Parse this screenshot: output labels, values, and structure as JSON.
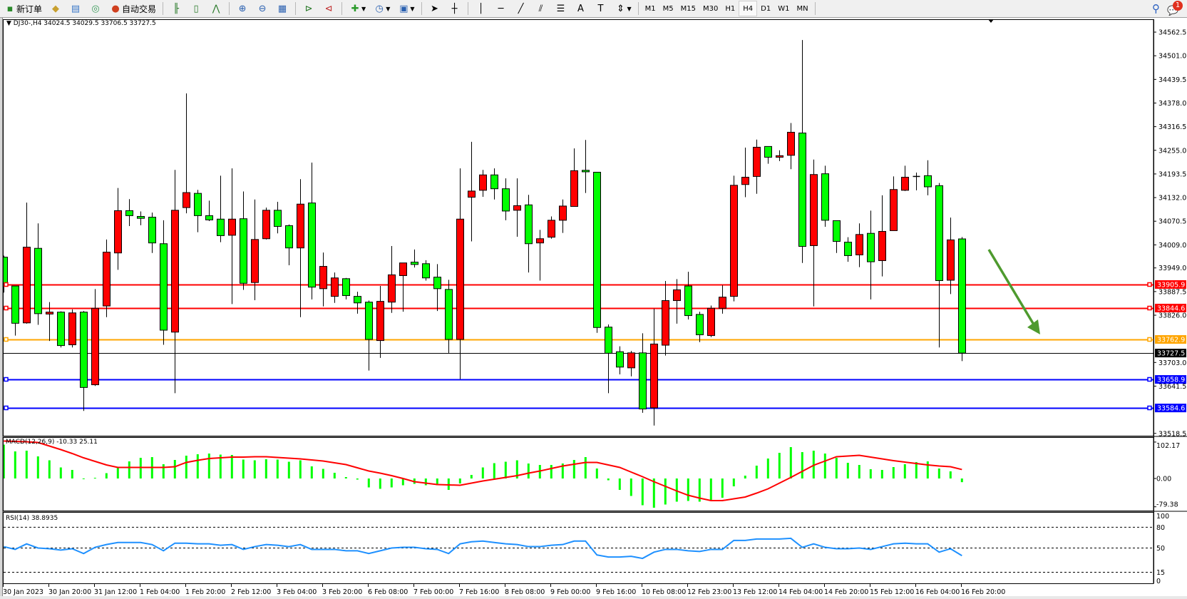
{
  "toolbar": {
    "new_order": "新订单",
    "auto_trading": "自动交易",
    "icons": [
      "new-order-icon",
      "gold-icon",
      "history-icon",
      "signal-icon",
      "auto-trading-icon",
      "bar-chart-icon",
      "candlestick-icon",
      "line-chart-icon",
      "zoom-in-icon",
      "zoom-out-icon",
      "tile-windows-icon",
      "autoscroll-icon",
      "chart-shift-icon",
      "indicators-icon",
      "periods-icon",
      "templates-icon",
      "cursor-icon",
      "crosshair-icon",
      "vertical-line-icon",
      "horizontal-line-icon",
      "trendline-icon",
      "equidistant-channel-icon",
      "fibonacci-icon",
      "text-icon",
      "text-label-icon",
      "arrows-icon"
    ],
    "timeframes": [
      "M1",
      "M5",
      "M15",
      "M30",
      "H1",
      "H4",
      "D1",
      "W1",
      "MN"
    ],
    "active_timeframe": "H4",
    "notification_count": "1"
  },
  "chart": {
    "header": "DJ30-,H4  34024.5 34029.5 33706.5 33727.5",
    "symbol": "DJ30-",
    "timeframe": "H4",
    "bull_color": "#FF0000",
    "bear_color": "#00FF00",
    "price_ticks": [
      "34562.5",
      "34501.0",
      "34439.5",
      "34378.0",
      "34316.5",
      "34255.0",
      "34193.5",
      "34132.0",
      "34070.5",
      "34009.0",
      "33949.0",
      "33887.5",
      "33826.0",
      "33703.0",
      "33641.5",
      "33518.5"
    ],
    "levels": [
      {
        "price": "33905.9",
        "color": "#FF0000"
      },
      {
        "price": "33844.6",
        "color": "#FF0000"
      },
      {
        "price": "33762.9",
        "color": "#FFA500"
      },
      {
        "price": "33658.9",
        "color": "#0000FF"
      },
      {
        "price": "33584.6",
        "color": "#0000FF"
      }
    ],
    "bid": {
      "price": "33727.5",
      "color": "#000000"
    },
    "time_labels": [
      "30 Jan 2023",
      "30 Jan 20:00",
      "31 Jan 12:00",
      "1 Feb 04:00",
      "1 Feb 20:00",
      "2 Feb 12:00",
      "3 Feb 04:00",
      "3 Feb 20:00",
      "6 Feb 08:00",
      "7 Feb 00:00",
      "7 Feb 16:00",
      "8 Feb 08:00",
      "9 Feb 00:00",
      "9 Feb 16:00",
      "10 Feb 08:00",
      "12 Feb 23:00",
      "13 Feb 12:00",
      "14 Feb 04:00",
      "14 Feb 20:00",
      "15 Feb 12:00",
      "16 Feb 04:00",
      "16 Feb 20:00"
    ],
    "annotation": {
      "type": "arrow-down",
      "color": "#4E9A2E"
    }
  },
  "chart_data": [
    {
      "type": "candlestick",
      "title": "DJ30-,H4",
      "ohlc_order": [
        "open",
        "high",
        "low",
        "close"
      ],
      "ylim": [
        33518.5,
        34590
      ],
      "candles": [
        [
          33977,
          33981,
          33885,
          33909
        ],
        [
          33902,
          33902,
          33773,
          33805
        ],
        [
          33806,
          34119,
          33804,
          34003
        ],
        [
          34000,
          34065,
          33801,
          33830
        ],
        [
          33829,
          33860,
          33759,
          33834
        ],
        [
          33834,
          33836,
          33742,
          33747
        ],
        [
          33749,
          33841,
          33742,
          33832
        ],
        [
          33834,
          33837,
          33577,
          33638
        ],
        [
          33645,
          33894,
          33642,
          33844
        ],
        [
          33850,
          34023,
          33821,
          33990
        ],
        [
          33988,
          34157,
          33944,
          34098
        ],
        [
          34098,
          34128,
          34058,
          34085
        ],
        [
          34083,
          34096,
          34060,
          34078
        ],
        [
          34081,
          34093,
          33988,
          34014
        ],
        [
          34012,
          34073,
          33749,
          33787
        ],
        [
          33782,
          34204,
          33623,
          34099
        ],
        [
          34106,
          34403,
          34091,
          34145
        ],
        [
          34143,
          34152,
          34042,
          34085
        ],
        [
          34085,
          34124,
          34071,
          34074
        ],
        [
          34076,
          34189,
          34016,
          34033
        ],
        [
          34034,
          34208,
          33855,
          34076
        ],
        [
          34077,
          34148,
          33892,
          33909
        ],
        [
          33911,
          34127,
          33865,
          34023
        ],
        [
          34025,
          34106,
          34023,
          34099
        ],
        [
          34099,
          34121,
          34039,
          34057
        ],
        [
          34059,
          34062,
          33956,
          34001
        ],
        [
          34001,
          34180,
          33821,
          34115
        ],
        [
          34118,
          34223,
          33867,
          33899
        ],
        [
          33895,
          33989,
          33849,
          33953
        ],
        [
          33875,
          33937,
          33858,
          33923
        ],
        [
          33921,
          33923,
          33867,
          33877
        ],
        [
          33875,
          33887,
          33830,
          33858
        ],
        [
          33860,
          33864,
          33682,
          33763
        ],
        [
          33760,
          33902,
          33715,
          33862
        ],
        [
          33860,
          34006,
          33832,
          33931
        ],
        [
          33929,
          33962,
          33835,
          33962
        ],
        [
          33964,
          33997,
          33950,
          33958
        ],
        [
          33960,
          33969,
          33916,
          33923
        ],
        [
          33925,
          33959,
          33837,
          33895
        ],
        [
          33893,
          33918,
          33726,
          33763
        ],
        [
          33763,
          34208,
          33660,
          34076
        ],
        [
          34133,
          34277,
          34018,
          34149
        ],
        [
          34151,
          34204,
          34134,
          34191
        ],
        [
          34191,
          34208,
          34127,
          34155
        ],
        [
          34155,
          34182,
          34073,
          34097
        ],
        [
          34099,
          34182,
          34030,
          34111
        ],
        [
          34113,
          34139,
          33937,
          34012
        ],
        [
          34014,
          34048,
          33916,
          34025
        ],
        [
          34029,
          34083,
          34025,
          34073
        ],
        [
          34073,
          34127,
          34040,
          34110
        ],
        [
          34109,
          34260,
          34109,
          34202
        ],
        [
          34203,
          34282,
          34144,
          34199
        ],
        [
          34198,
          34198,
          33780,
          33794
        ],
        [
          33795,
          33802,
          33623,
          33727
        ],
        [
          33731,
          33745,
          33672,
          33691
        ],
        [
          33689,
          33733,
          33667,
          33728
        ],
        [
          33728,
          33779,
          33572,
          33582
        ],
        [
          33585,
          33843,
          33539,
          33751
        ],
        [
          33748,
          33915,
          33721,
          33864
        ],
        [
          33864,
          33920,
          33804,
          33892
        ],
        [
          33902,
          33939,
          33815,
          33825
        ],
        [
          33828,
          33835,
          33756,
          33775
        ],
        [
          33773,
          33851,
          33769,
          33844
        ],
        [
          33844,
          33904,
          33830,
          33873
        ],
        [
          33875,
          34189,
          33862,
          34164
        ],
        [
          34166,
          34262,
          34133,
          34185
        ],
        [
          34187,
          34283,
          34142,
          34263
        ],
        [
          34265,
          34265,
          34220,
          34237
        ],
        [
          34237,
          34255,
          34227,
          34241
        ],
        [
          34242,
          34326,
          34206,
          34302
        ],
        [
          34300,
          34542,
          33962,
          34005
        ],
        [
          34007,
          34231,
          33849,
          34192
        ],
        [
          34194,
          34215,
          34056,
          34073
        ],
        [
          34072,
          34072,
          33988,
          34018
        ],
        [
          34016,
          34029,
          33965,
          33981
        ],
        [
          33983,
          34065,
          33951,
          34036
        ],
        [
          34039,
          34098,
          33867,
          33965
        ],
        [
          33968,
          34138,
          33927,
          34044
        ],
        [
          34046,
          34187,
          34046,
          34153
        ],
        [
          34151,
          34215,
          34149,
          34185
        ],
        [
          34187,
          34197,
          34151,
          34187
        ],
        [
          34189,
          34229,
          34138,
          34160
        ],
        [
          34163,
          34170,
          33742,
          33916
        ],
        [
          33917,
          34080,
          33881,
          34022
        ],
        [
          34024.5,
          34029.5,
          33706.5,
          33727.5
        ]
      ]
    },
    {
      "type": "bar",
      "title": "MACD(12,26,9) -10.33 25.11",
      "label": "MACD(12,26,9)",
      "current_main": "-10.33",
      "current_signal": "25.11",
      "ylim": [
        -79.38,
        102.17
      ],
      "y_ticks": [
        "102.17",
        "0.00",
        "-79.38"
      ],
      "histogram_color": "#00FF00",
      "signal_color": "#FF0000",
      "histogram": [
        95,
        76,
        78,
        62,
        51,
        31,
        24,
        -1,
        2,
        15,
        31,
        48,
        58,
        60,
        40,
        52,
        64,
        68,
        70,
        67,
        66,
        53,
        51,
        54,
        53,
        47,
        51,
        34,
        27,
        16,
        4,
        -3,
        -25,
        -29,
        -25,
        -19,
        -15,
        -19,
        -19,
        -32,
        -14,
        10,
        31,
        43,
        47,
        51,
        42,
        38,
        38,
        42,
        52,
        60,
        28,
        -5,
        -32,
        -49,
        -75,
        -82,
        -73,
        -65,
        -63,
        -65,
        -61,
        -54,
        -22,
        8,
        36,
        56,
        72,
        88,
        74,
        78,
        70,
        58,
        44,
        38,
        26,
        24,
        32,
        40,
        46,
        48,
        28,
        20,
        -10.33
      ],
      "signal": [
        105,
        104,
        103,
        101,
        91,
        81,
        70,
        58,
        48,
        38,
        31,
        31,
        31,
        31,
        31,
        33,
        45,
        51,
        56,
        58,
        60,
        60,
        61,
        61,
        59,
        57,
        55,
        52,
        49,
        44,
        39,
        30,
        21,
        15,
        8,
        0,
        -9,
        -13,
        -17,
        -18,
        -19,
        -13,
        -7,
        -2,
        3,
        8,
        15,
        21,
        28,
        35,
        40,
        45,
        45,
        38,
        31,
        18,
        5,
        -9,
        -22,
        -35,
        -47,
        -55,
        -62,
        -62,
        -57,
        -52,
        -41,
        -29,
        -13,
        3,
        20,
        37,
        49,
        61,
        63,
        65,
        60,
        55,
        50,
        46,
        42,
        38,
        35,
        33,
        25.11
      ]
    },
    {
      "type": "line",
      "title": "RSI(14) 38.8935",
      "label": "RSI(14)",
      "current": "38.8935",
      "ylim": [
        0,
        100
      ],
      "y_ticks": [
        "100",
        "80",
        "50",
        "15",
        "0"
      ],
      "levels": [
        80,
        50,
        15
      ],
      "line_color": "#1E90FF",
      "values": [
        52,
        48,
        56,
        50,
        49,
        47,
        49,
        42,
        51,
        55,
        58,
        58,
        58,
        55,
        46,
        57,
        57,
        56,
        56,
        54,
        55,
        48,
        52,
        55,
        54,
        52,
        55,
        48,
        48,
        48,
        46,
        46,
        42,
        46,
        50,
        51,
        51,
        49,
        48,
        42,
        56,
        59,
        60,
        58,
        56,
        55,
        52,
        52,
        54,
        55,
        60,
        60,
        40,
        37,
        37,
        38,
        35,
        44,
        48,
        48,
        46,
        45,
        48,
        48,
        61,
        61,
        63,
        63,
        63,
        64,
        51,
        56,
        51,
        49,
        49,
        50,
        48,
        52,
        56,
        57,
        56,
        56,
        44,
        49,
        38.89
      ]
    }
  ]
}
